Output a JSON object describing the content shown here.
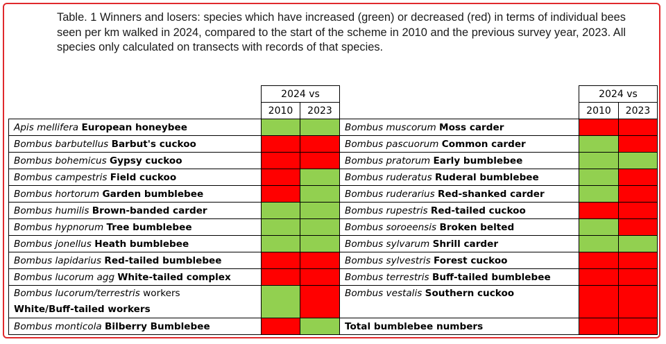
{
  "caption": "Table. 1 Winners and losers: species which have increased (green) or decreased (red) in terms of individual bees seen per km walked in 2024, compared to the start of the scheme in 2010 and the previous survey year, 2023. All species only calculated on transects with records of that species.",
  "header": {
    "group": "2024 vs",
    "col_a": "2010",
    "col_b": "2023"
  },
  "colors": {
    "increase": "#92d050",
    "decrease": "#ff0000",
    "frame": "#e0292c"
  },
  "rows": [
    {
      "left": {
        "latin": "Apis mellifera",
        "common": "European honeybee",
        "v2010": "increase",
        "v2023": "increase"
      },
      "right": {
        "latin": "Bombus muscorum",
        "common": "Moss carder",
        "v2010": "decrease",
        "v2023": "decrease"
      }
    },
    {
      "left": {
        "latin": "Bombus barbutellus",
        "common": "Barbut's cuckoo",
        "v2010": "decrease",
        "v2023": "decrease"
      },
      "right": {
        "latin": "Bombus pascuorum",
        "common": "Common carder",
        "v2010": "increase",
        "v2023": "decrease"
      }
    },
    {
      "left": {
        "latin": "Bombus bohemicus",
        "common": "Gypsy cuckoo",
        "v2010": "decrease",
        "v2023": "decrease"
      },
      "right": {
        "latin": "Bombus pratorum",
        "common": "Early bumblebee",
        "v2010": "increase",
        "v2023": "increase"
      }
    },
    {
      "left": {
        "latin": "Bombus campestris",
        "common": "Field cuckoo",
        "v2010": "decrease",
        "v2023": "increase"
      },
      "right": {
        "latin": "Bombus ruderatus",
        "common": "Ruderal bumblebee",
        "v2010": "increase",
        "v2023": "decrease"
      }
    },
    {
      "left": {
        "latin": "Bombus hortorum",
        "common": "Garden bumblebee",
        "v2010": "decrease",
        "v2023": "increase"
      },
      "right": {
        "latin": "Bombus ruderarius",
        "common": "Red-shanked carder",
        "v2010": "increase",
        "v2023": "decrease"
      }
    },
    {
      "left": {
        "latin": "Bombus humilis",
        "common": "Brown-banded carder",
        "v2010": "increase",
        "v2023": "increase"
      },
      "right": {
        "latin": "Bombus rupestris",
        "common": "Red-tailed cuckoo",
        "v2010": "decrease",
        "v2023": "decrease"
      }
    },
    {
      "left": {
        "latin": "Bombus hypnorum",
        "common": "Tree bumblebee",
        "v2010": "increase",
        "v2023": "increase"
      },
      "right": {
        "latin": "Bombus soroeensis",
        "common": "Broken belted",
        "v2010": "increase",
        "v2023": "decrease"
      }
    },
    {
      "left": {
        "latin": "Bombus jonellus",
        "common": "Heath bumblebee",
        "v2010": "increase",
        "v2023": "increase"
      },
      "right": {
        "latin": "Bombus sylvarum",
        "common": "Shrill carder",
        "v2010": "increase",
        "v2023": "increase"
      }
    },
    {
      "left": {
        "latin": "Bombus lapidarius",
        "common": "Red-tailed bumblebee",
        "v2010": "decrease",
        "v2023": "decrease"
      },
      "right": {
        "latin": "Bombus sylvestris",
        "common": "Forest cuckoo",
        "v2010": "decrease",
        "v2023": "decrease"
      }
    },
    {
      "left": {
        "latin": "Bombus lucorum agg",
        "common": "White-tailed complex",
        "v2010": "decrease",
        "v2023": "decrease"
      },
      "right": {
        "latin": "Bombus terrestris",
        "common": "Buff-tailed bumblebee",
        "v2010": "decrease",
        "v2023": "decrease"
      }
    },
    {
      "left": {
        "latin": "Bombus lucorum/terrestris",
        "extra": "workers",
        "common": "White/Buff-tailed workers",
        "v2010": "increase",
        "v2023": "decrease"
      },
      "right": {
        "latin": "Bombus vestalis",
        "common": "Southern cuckoo",
        "v2010": "decrease",
        "v2023": "decrease"
      }
    },
    {
      "left": {
        "latin": "Bombus monticola",
        "common": "Bilberry Bumblebee",
        "v2010": "decrease",
        "v2023": "increase"
      },
      "right": {
        "latin": "",
        "common": "Total bumblebee numbers",
        "v2010": "decrease",
        "v2023": "decrease"
      }
    }
  ]
}
